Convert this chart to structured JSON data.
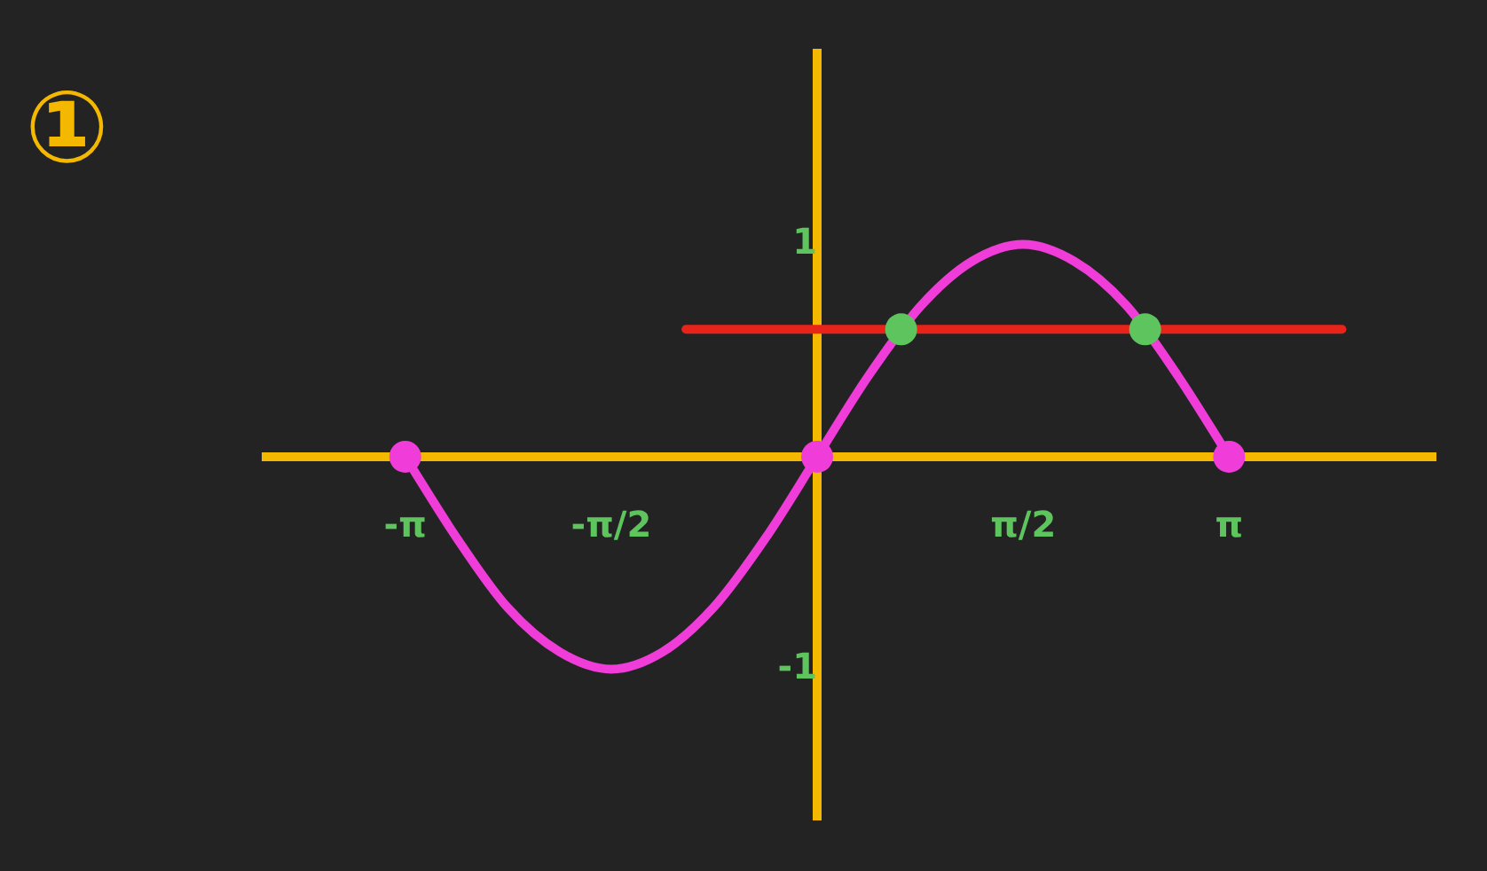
{
  "chart_data": {
    "type": "line",
    "annotations": [
      "①"
    ],
    "xlim": [
      -4.2,
      4.7
    ],
    "ylim": [
      -1.7,
      1.9
    ],
    "xticks": [
      {
        "value": -3.14,
        "label": "-π"
      },
      {
        "value": -1.57,
        "label": "-π/2"
      },
      {
        "value": 1.57,
        "label": "π/2"
      },
      {
        "value": 3.14,
        "label": "π"
      }
    ],
    "yticks": [
      {
        "value": 1,
        "label": "1"
      },
      {
        "value": -1,
        "label": "-1"
      }
    ],
    "grid": false,
    "legend": false,
    "series": [
      {
        "type": "line",
        "color": "#f03cd8",
        "x": [
          -3.14,
          -2.75,
          -2.36,
          -1.96,
          -1.57,
          -1.18,
          -0.79,
          -0.39,
          0,
          0.39,
          0.79,
          1.18,
          1.57,
          1.96,
          2.36,
          2.75,
          3.14
        ],
        "values": [
          0,
          -0.38,
          -0.71,
          -0.92,
          -1,
          -0.92,
          -0.71,
          -0.38,
          0,
          0.38,
          0.71,
          0.92,
          1,
          0.92,
          0.71,
          0.38,
          0
        ]
      },
      {
        "type": "line",
        "color": "#e8231a",
        "x": [
          -1.0,
          4.0
        ],
        "values": [
          0.6,
          0.6
        ]
      },
      {
        "type": "scatter",
        "color": "#f03cd8",
        "x": [
          -3.14,
          0,
          3.14
        ],
        "values": [
          0,
          0,
          0
        ]
      },
      {
        "type": "scatter",
        "color": "#5ec45e",
        "x": [
          0.64,
          2.5
        ],
        "values": [
          0.6,
          0.6
        ]
      }
    ]
  }
}
